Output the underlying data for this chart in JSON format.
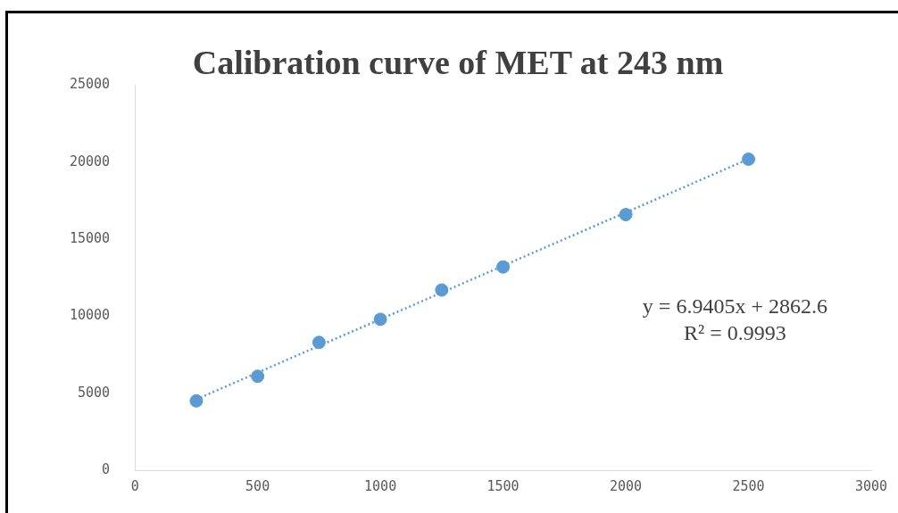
{
  "chart_data": {
    "type": "scatter",
    "title": "Calibration curve of MET at 243 nm",
    "x": [
      250,
      500,
      750,
      1000,
      1250,
      1500,
      2000,
      2500
    ],
    "series": [
      {
        "type": "scatter",
        "color": "#5b9bd5",
        "values": [
          4500,
          6100,
          8300,
          9800,
          11700,
          13200,
          16600,
          20200
        ],
        "marker": "circle"
      },
      {
        "type": "line",
        "color": "#5b9bd5",
        "x": [
          250,
          2500
        ],
        "values": [
          4600,
          20210
        ],
        "line_style": "dotted",
        "marker": "none"
      }
    ],
    "xlim": [
      0,
      3000
    ],
    "xticks": [
      0,
      500,
      1000,
      1500,
      2000,
      2500,
      3000
    ],
    "ylim": [
      0,
      25000
    ],
    "yticks": [
      0,
      5000,
      10000,
      15000,
      20000,
      25000
    ],
    "grid": false,
    "legend": false,
    "annotations": [
      "y = 6.9405x + 2862.6",
      "R² = 0.9993"
    ]
  }
}
